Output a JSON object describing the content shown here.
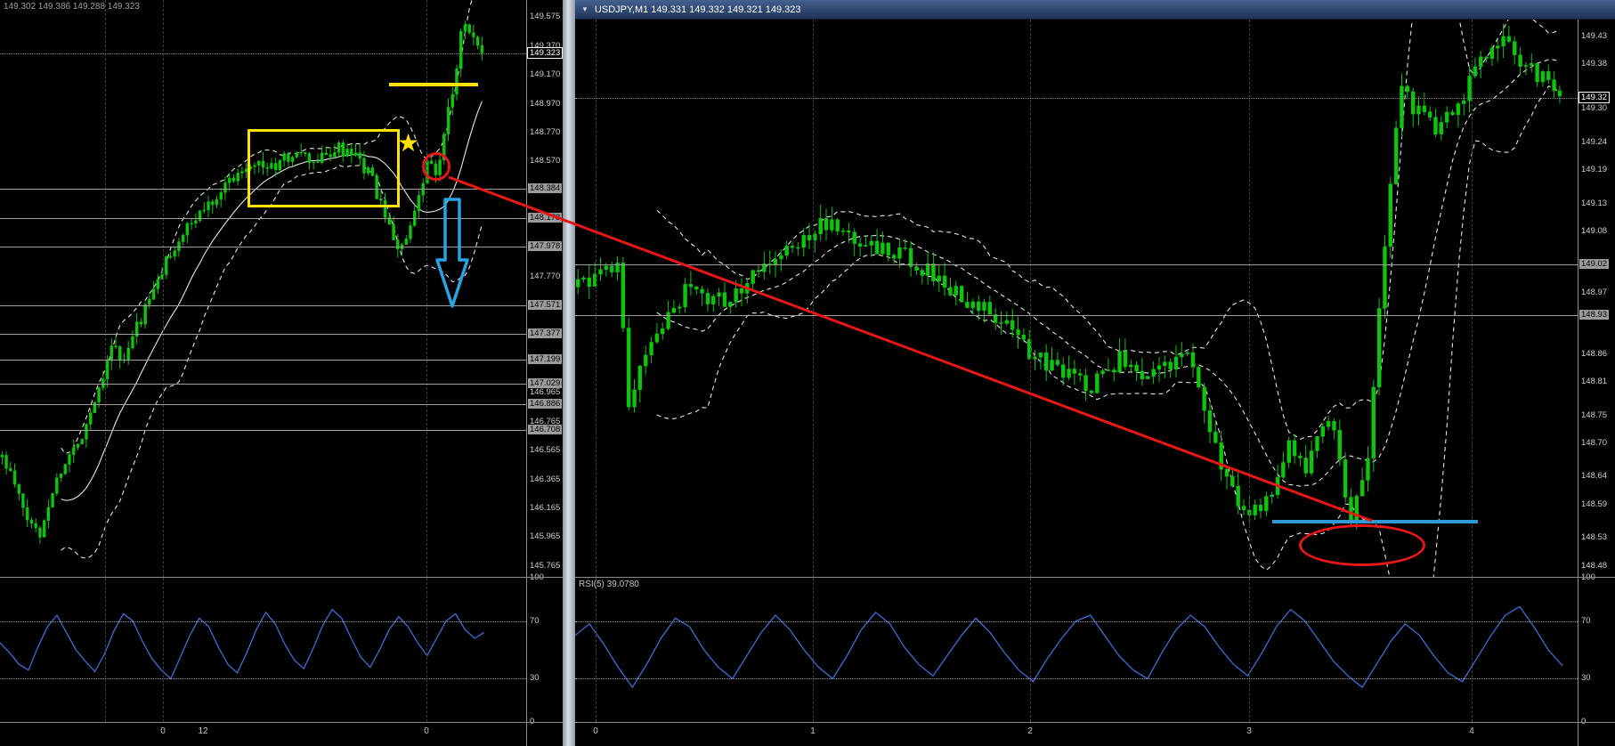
{
  "left_panel": {
    "ohlc": "149.302 149.386 149.288 149.323",
    "price_axis": {
      "ticks": [
        "149.575",
        "149.370",
        "149.170",
        "148.970",
        "148.770",
        "148.570",
        "147.770",
        "146.965",
        "146.765",
        "146.565",
        "146.365",
        "146.165",
        "145.965",
        "145.765"
      ],
      "levels": [
        "148.384",
        "148.178",
        "147.978",
        "147.571",
        "147.377",
        "147.199",
        "147.029",
        "146.886",
        "146.708"
      ],
      "current": "149.323"
    },
    "time_labels": [
      {
        "label": "0",
        "xf": 0.31
      },
      {
        "label": "12",
        "xf": 0.386
      },
      {
        "label": "0",
        "xf": 0.81
      }
    ],
    "grid_xf": [
      0.2,
      0.31,
      0.81
    ]
  },
  "right_panel": {
    "title_marker": "▼",
    "title": "USDJPY,M1  149.331 149.332 149.321 149.323",
    "rsi_label": "RSI(5) 39.0780",
    "price_axis": {
      "ticks": [
        "149.43",
        "149.38",
        "149.30",
        "149.24",
        "149.19",
        "149.13",
        "149.08",
        "148.97",
        "148.86",
        "148.81",
        "148.75",
        "148.70",
        "148.64",
        "148.59",
        "148.53",
        "148.48"
      ],
      "levels": [
        "149.02",
        "148.93"
      ],
      "current": "149.32"
    },
    "time_labels": [
      {
        "label": "0",
        "xf": 0.02
      },
      {
        "label": "1",
        "xf": 0.237
      },
      {
        "label": "2",
        "xf": 0.454
      },
      {
        "label": "3",
        "xf": 0.672
      },
      {
        "label": "4",
        "xf": 0.894
      }
    ],
    "grid_xf": [
      0.02,
      0.237,
      0.454,
      0.672,
      0.894
    ]
  },
  "rsi_scale": [
    {
      "label": "100",
      "level": 100
    },
    {
      "label": "70",
      "level": 70
    },
    {
      "label": "30",
      "level": 30
    },
    {
      "label": "0",
      "level": 0
    }
  ],
  "chart_data": [
    {
      "id": "left-main",
      "type": "candlestick",
      "symbol": "USDJPY",
      "timeframe": "M1",
      "price_range": [
        145.69,
        149.69
      ],
      "trend": [
        [
          0,
          146.52
        ],
        [
          0.02,
          146.38
        ],
        [
          0.05,
          146.1
        ],
        [
          0.08,
          145.98
        ],
        [
          0.1,
          146.25
        ],
        [
          0.13,
          146.48
        ],
        [
          0.16,
          146.62
        ],
        [
          0.2,
          146.98
        ],
        [
          0.23,
          147.33
        ],
        [
          0.25,
          147.14
        ],
        [
          0.28,
          147.42
        ],
        [
          0.32,
          147.7
        ],
        [
          0.35,
          147.94
        ],
        [
          0.39,
          148.12
        ],
        [
          0.43,
          148.28
        ],
        [
          0.48,
          148.46
        ],
        [
          0.52,
          148.58
        ],
        [
          0.56,
          148.52
        ],
        [
          0.61,
          148.63
        ],
        [
          0.65,
          148.56
        ],
        [
          0.7,
          148.66
        ],
        [
          0.74,
          148.58
        ],
        [
          0.77,
          148.46
        ],
        [
          0.8,
          148.15
        ],
        [
          0.83,
          147.96
        ],
        [
          0.85,
          148.08
        ],
        [
          0.87,
          148.32
        ],
        [
          0.89,
          148.6
        ],
        [
          0.905,
          148.44
        ],
        [
          0.92,
          148.74
        ],
        [
          0.94,
          149.08
        ],
        [
          0.955,
          149.44
        ],
        [
          0.968,
          149.56
        ],
        [
          0.985,
          149.37
        ],
        [
          1,
          149.323
        ]
      ],
      "candles": 115,
      "volatility": 0.09,
      "x_end": 0.92,
      "seed": 11,
      "band_window": 14,
      "band_mult": 2.1,
      "mid_dashed": false,
      "candle_color": "#0ec40e",
      "band_color": "#e6e6e6"
    },
    {
      "id": "right-main",
      "type": "candlestick",
      "symbol": "USDJPY",
      "timeframe": "M1",
      "price_range": [
        148.46,
        149.46
      ],
      "trend": [
        [
          0,
          148.98
        ],
        [
          0.04,
          149.03
        ],
        [
          0.052,
          148.77
        ],
        [
          0.07,
          148.86
        ],
        [
          0.11,
          148.97
        ],
        [
          0.15,
          148.96
        ],
        [
          0.19,
          149.02
        ],
        [
          0.23,
          149.07
        ],
        [
          0.25,
          149.1
        ],
        [
          0.29,
          149.06
        ],
        [
          0.33,
          149.04
        ],
        [
          0.37,
          148.99
        ],
        [
          0.42,
          148.93
        ],
        [
          0.47,
          148.85
        ],
        [
          0.52,
          148.8
        ],
        [
          0.55,
          148.85
        ],
        [
          0.59,
          148.82
        ],
        [
          0.62,
          148.86
        ],
        [
          0.66,
          148.63
        ],
        [
          0.68,
          148.56
        ],
        [
          0.71,
          148.62
        ],
        [
          0.725,
          148.7
        ],
        [
          0.74,
          148.64
        ],
        [
          0.763,
          148.74
        ],
        [
          0.776,
          148.68
        ],
        [
          0.786,
          148.53
        ],
        [
          0.795,
          148.63
        ],
        [
          0.805,
          148.68
        ],
        [
          0.815,
          148.92
        ],
        [
          0.825,
          149.12
        ],
        [
          0.838,
          149.35
        ],
        [
          0.852,
          149.3
        ],
        [
          0.877,
          149.26
        ],
        [
          0.896,
          149.31
        ],
        [
          0.917,
          149.37
        ],
        [
          0.938,
          149.43
        ],
        [
          0.96,
          149.38
        ],
        [
          0.985,
          149.35
        ],
        [
          1,
          149.323
        ]
      ],
      "candles": 175,
      "volatility": 0.035,
      "x_end": 0.985,
      "seed": 29,
      "band_window": 14,
      "band_mult": 2.1,
      "mid_dashed": true,
      "candle_color": "#0ec40e",
      "band_color": "#e6e6e6"
    },
    {
      "id": "left-rsi",
      "type": "line",
      "range": [
        0,
        100
      ],
      "x_end": 0.92,
      "color": "#3a6fd8",
      "values": [
        55,
        48,
        40,
        36,
        52,
        66,
        74,
        62,
        50,
        42,
        35,
        47,
        63,
        75,
        70,
        56,
        44,
        36,
        30,
        45,
        60,
        72,
        66,
        52,
        40,
        34,
        48,
        64,
        76,
        68,
        54,
        43,
        37,
        51,
        67,
        78,
        72,
        58,
        45,
        38,
        50,
        64,
        73,
        66,
        55,
        46,
        58,
        70,
        75,
        64,
        58,
        62
      ]
    },
    {
      "id": "right-rsi",
      "type": "line",
      "range": [
        0,
        100
      ],
      "x_end": 0.985,
      "color": "#3a6fd8",
      "values": [
        60,
        68,
        54,
        38,
        24,
        40,
        58,
        72,
        66,
        50,
        38,
        30,
        46,
        62,
        74,
        64,
        50,
        38,
        30,
        46,
        64,
        76,
        68,
        52,
        40,
        32,
        46,
        60,
        72,
        62,
        48,
        36,
        28,
        44,
        58,
        70,
        74,
        60,
        46,
        36,
        30,
        48,
        64,
        74,
        66,
        52,
        40,
        32,
        48,
        66,
        78,
        70,
        56,
        42,
        32,
        24,
        40,
        56,
        68,
        60,
        46,
        34,
        28,
        44,
        60,
        74,
        80,
        66,
        50,
        39
      ]
    }
  ],
  "annotations": {
    "star_glyph": "★",
    "yellow": "#ffe400",
    "red": "#e81717",
    "blue_arrow": "#29a3e3",
    "blue_line": "#2e9bd6"
  }
}
